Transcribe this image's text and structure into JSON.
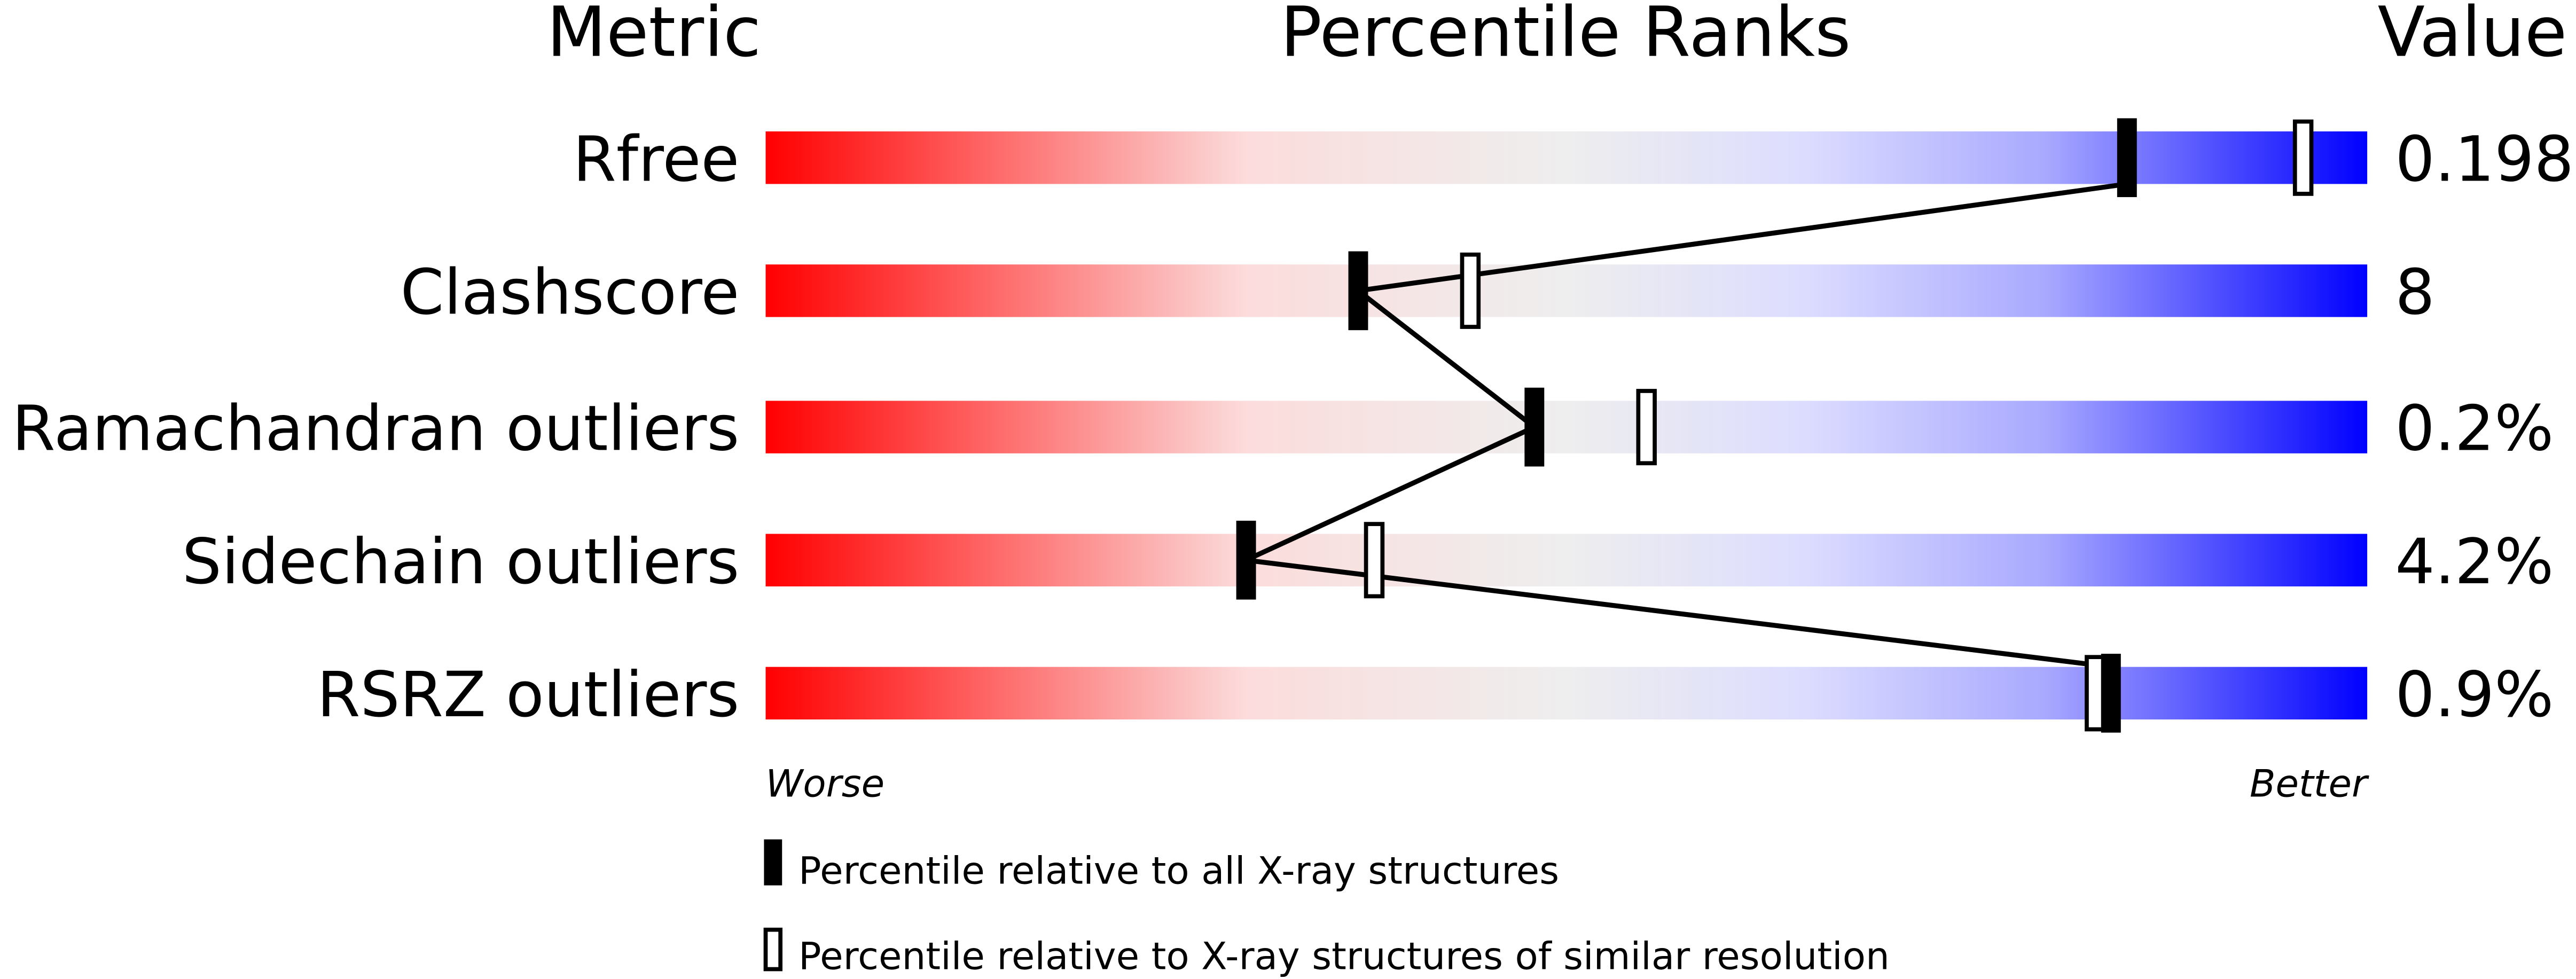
{
  "chart_data": {
    "type": "bar",
    "title": "",
    "header_metric": "Metric",
    "header_percentile": "Percentile Ranks",
    "header_value": "Value",
    "categories": [
      "Rfree",
      "Clashscore",
      "Ramachandran outliers",
      "Sidechain outliers",
      "RSRZ outliers"
    ],
    "values_text": [
      "0.198",
      "8",
      "0.2%",
      "4.2%",
      "0.9%"
    ],
    "xlim": [
      0,
      100
    ],
    "axis_left_label": "Worse",
    "axis_right_label": "Better",
    "series": [
      {
        "name": "Percentile relative to all X-ray structures",
        "marker": "filled",
        "values": [
          85,
          37,
          48,
          30,
          84
        ],
        "connected": true
      },
      {
        "name": "Percentile relative to X-ray structures of similar resolution",
        "marker": "open",
        "values": [
          96,
          44,
          55,
          38,
          83
        ]
      }
    ],
    "gradient_colors": [
      "#ff0000",
      "#fcdcdc",
      "#eeeeee",
      "#dcdcff",
      "#0000ff"
    ],
    "legend_placement": "bottom"
  }
}
